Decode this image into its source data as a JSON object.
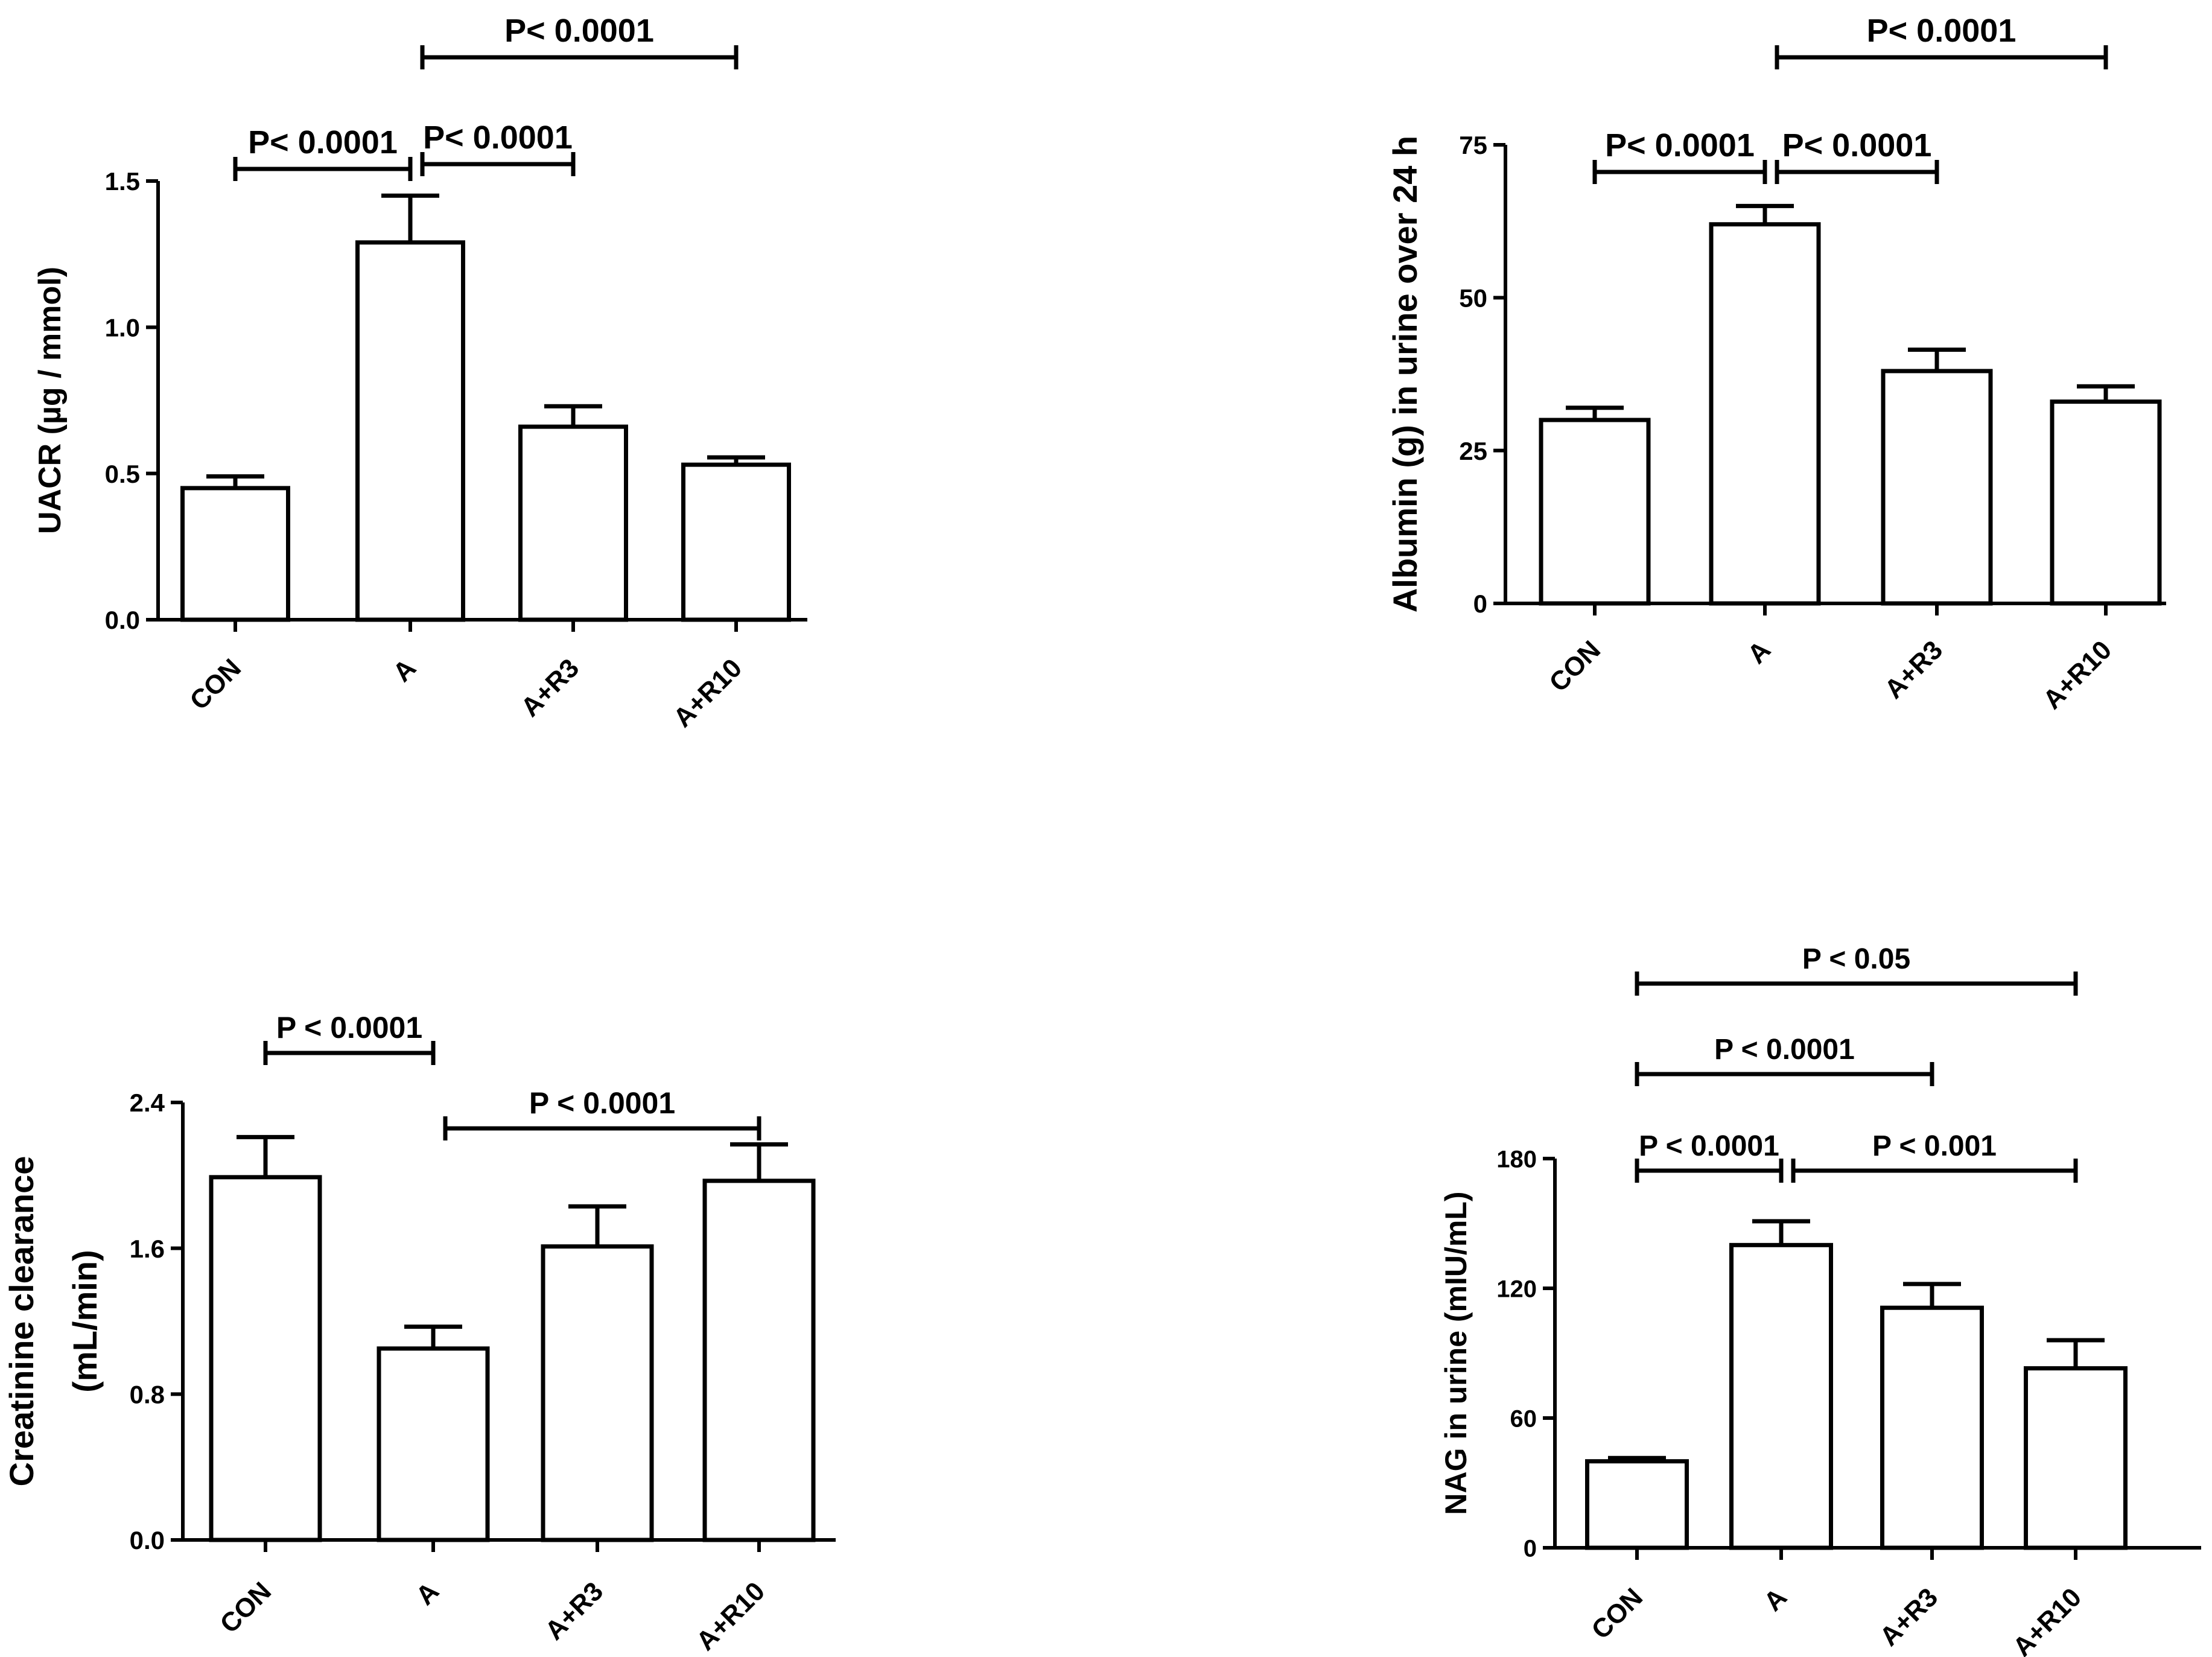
{
  "chart_data": [
    {
      "type": "bar",
      "categories": [
        "CON",
        "A",
        "A+R3",
        "A+R10"
      ],
      "values": [
        0.45,
        1.29,
        0.66,
        0.53
      ],
      "errors": [
        0.04,
        0.16,
        0.07,
        0.025
      ],
      "ylabel": "UACR (µg / mmol)",
      "ylim": [
        0,
        1.5
      ],
      "yticks": [
        "0.0",
        "0.5",
        "1.0",
        "1.5"
      ],
      "comparisons": [
        {
          "from": 0,
          "to": 1,
          "label": "P< 0.0001"
        },
        {
          "from": 1,
          "to": 2,
          "label": "P< 0.0001"
        },
        {
          "from": 1,
          "to": 3,
          "label": "P< 0.0001"
        }
      ]
    },
    {
      "type": "bar",
      "categories": [
        "CON",
        "A",
        "A+R3",
        "A+R10"
      ],
      "values": [
        30,
        62,
        38,
        33
      ],
      "errors": [
        2,
        3,
        3.5,
        2.5
      ],
      "ylabel": "Albumin (g) in urine over 24 h",
      "ylim": [
        0,
        75
      ],
      "yticks": [
        "0",
        "25",
        "50",
        "75"
      ],
      "comparisons": [
        {
          "from": 0,
          "to": 1,
          "label": "P< 0.0001"
        },
        {
          "from": 1,
          "to": 2,
          "label": "P< 0.0001"
        },
        {
          "from": 1,
          "to": 3,
          "label": "P< 0.0001"
        }
      ]
    },
    {
      "type": "bar",
      "categories": [
        "CON",
        "A",
        "A+R3",
        "A+R10"
      ],
      "values": [
        1.99,
        1.05,
        1.61,
        1.97
      ],
      "errors": [
        0.22,
        0.12,
        0.22,
        0.2
      ],
      "ylabel": "Creatinine clearance",
      "ylabel2": "(mL/min)",
      "ylim": [
        0,
        2.4
      ],
      "yticks": [
        "0.0",
        "0.8",
        "1.6",
        "2.4"
      ],
      "comparisons": [
        {
          "from": 0,
          "to": 1,
          "label": "P < 0.0001"
        },
        {
          "from": 1,
          "to": 3,
          "label": "P < 0.0001"
        }
      ]
    },
    {
      "type": "bar",
      "categories": [
        "CON",
        "A",
        "A+R3",
        "A+R10"
      ],
      "values": [
        40,
        140,
        111,
        83
      ],
      "errors": [
        1.5,
        11,
        11,
        13
      ],
      "ylabel": "NAG in urine (mIU/mL)",
      "ylim": [
        0,
        180
      ],
      "yticks": [
        "0",
        "60",
        "120",
        "180"
      ],
      "comparisons": [
        {
          "from": 0,
          "to": 1,
          "label": "P < 0.0001"
        },
        {
          "from": 1,
          "to": 3,
          "label": "P < 0.001"
        },
        {
          "from": 0,
          "to": 2,
          "label": "P < 0.0001"
        },
        {
          "from": 0,
          "to": 3,
          "label": "P < 0.05"
        }
      ]
    }
  ]
}
